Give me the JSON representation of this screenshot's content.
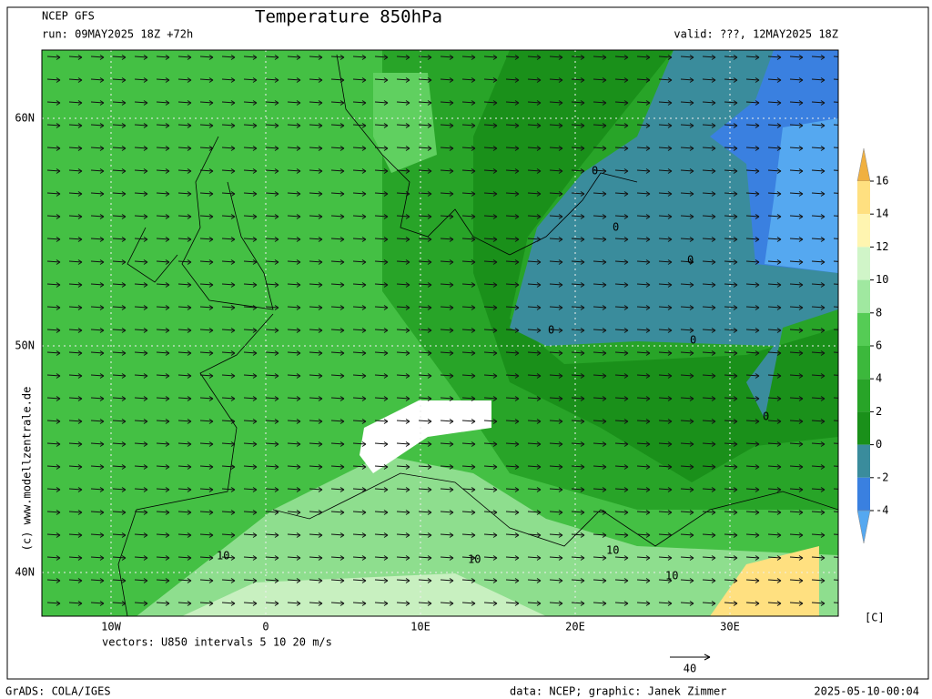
{
  "header": {
    "model": "NCEP GFS",
    "run": "run: 09MAY2025 18Z +72h",
    "title": "Temperature 850hPa",
    "valid": "valid: ???, 12MAY2025 18Z"
  },
  "map": {
    "lat_labels": [
      "60N",
      "50N",
      "40N"
    ],
    "lon_labels": [
      "10W",
      "0",
      "10E",
      "20E",
      "30E"
    ],
    "contour_labels": [
      "0",
      "0",
      "0",
      "0",
      "0",
      "0",
      "10",
      "10",
      "10",
      "10"
    ],
    "vectors_note": "vectors: U850 intervals 5 10 20 m/s",
    "reference_vector": "40",
    "credit": "(c) www.modellzentrale.de"
  },
  "colorbar": {
    "ticks": [
      16,
      14,
      12,
      10,
      8,
      6,
      4,
      2,
      0,
      -2,
      -4
    ],
    "range": [
      -4,
      16
    ],
    "unit": "[C]",
    "colors": [
      "#f0b040",
      "#ffe080",
      "#fff5b0",
      "#d0f5c8",
      "#a0e8a0",
      "#55cc55",
      "#3cb83c",
      "#28a428",
      "#1a901a",
      "#3a8c9c",
      "#3a80e0",
      "#55a8f0"
    ]
  },
  "footer": {
    "left": "GrADS: COLA/IGES",
    "center": "data: NCEP; graphic: Janek Zimmer",
    "right": "2025-05-10-00:04"
  }
}
